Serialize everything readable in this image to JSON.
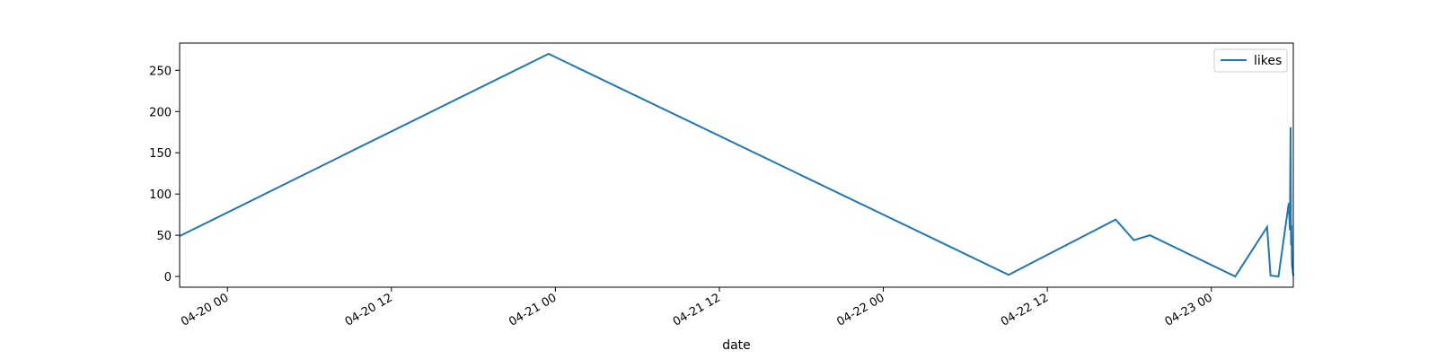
{
  "chart_data": {
    "type": "line",
    "xlabel": "date",
    "ylabel": "",
    "x_ticks": [
      {
        "value": "2024-04-20T00:00",
        "label": "04-20 00"
      },
      {
        "value": "2024-04-20T12:00",
        "label": "04-20 12"
      },
      {
        "value": "2024-04-21T00:00",
        "label": "04-21 00"
      },
      {
        "value": "2024-04-21T12:00",
        "label": "04-21 12"
      },
      {
        "value": "2024-04-22T00:00",
        "label": "04-22 00"
      },
      {
        "value": "2024-04-22T12:00",
        "label": "04-22 12"
      },
      {
        "value": "2024-04-23T00:00",
        "label": "04-23 00"
      }
    ],
    "y_ticks": [
      0,
      50,
      100,
      150,
      200,
      250
    ],
    "xlim": [
      "2024-04-19T20:30",
      "2024-04-23T06:00"
    ],
    "ylim": [
      -13,
      283
    ],
    "legend": {
      "position": "top-right",
      "entries": [
        "likes"
      ]
    },
    "series": [
      {
        "name": "likes",
        "color": "#1f77b4",
        "points": [
          {
            "x": "2024-04-19T20:30",
            "y": 49
          },
          {
            "x": "2024-04-20T23:30",
            "y": 270
          },
          {
            "x": "2024-04-22T09:10",
            "y": 2
          },
          {
            "x": "2024-04-22T17:00",
            "y": 69
          },
          {
            "x": "2024-04-22T18:20",
            "y": 44
          },
          {
            "x": "2024-04-22T19:30",
            "y": 50
          },
          {
            "x": "2024-04-23T01:45",
            "y": 0
          },
          {
            "x": "2024-04-23T04:05",
            "y": 60
          },
          {
            "x": "2024-04-23T04:20",
            "y": 1
          },
          {
            "x": "2024-04-23T04:55",
            "y": 0
          },
          {
            "x": "2024-04-23T05:40",
            "y": 89
          },
          {
            "x": "2024-04-23T05:45",
            "y": 56
          },
          {
            "x": "2024-04-23T05:48",
            "y": 181
          },
          {
            "x": "2024-04-23T05:50",
            "y": 38
          },
          {
            "x": "2024-04-23T05:52",
            "y": 62
          },
          {
            "x": "2024-04-23T05:54",
            "y": 15
          },
          {
            "x": "2024-04-23T06:00",
            "y": 1
          }
        ]
      }
    ]
  }
}
